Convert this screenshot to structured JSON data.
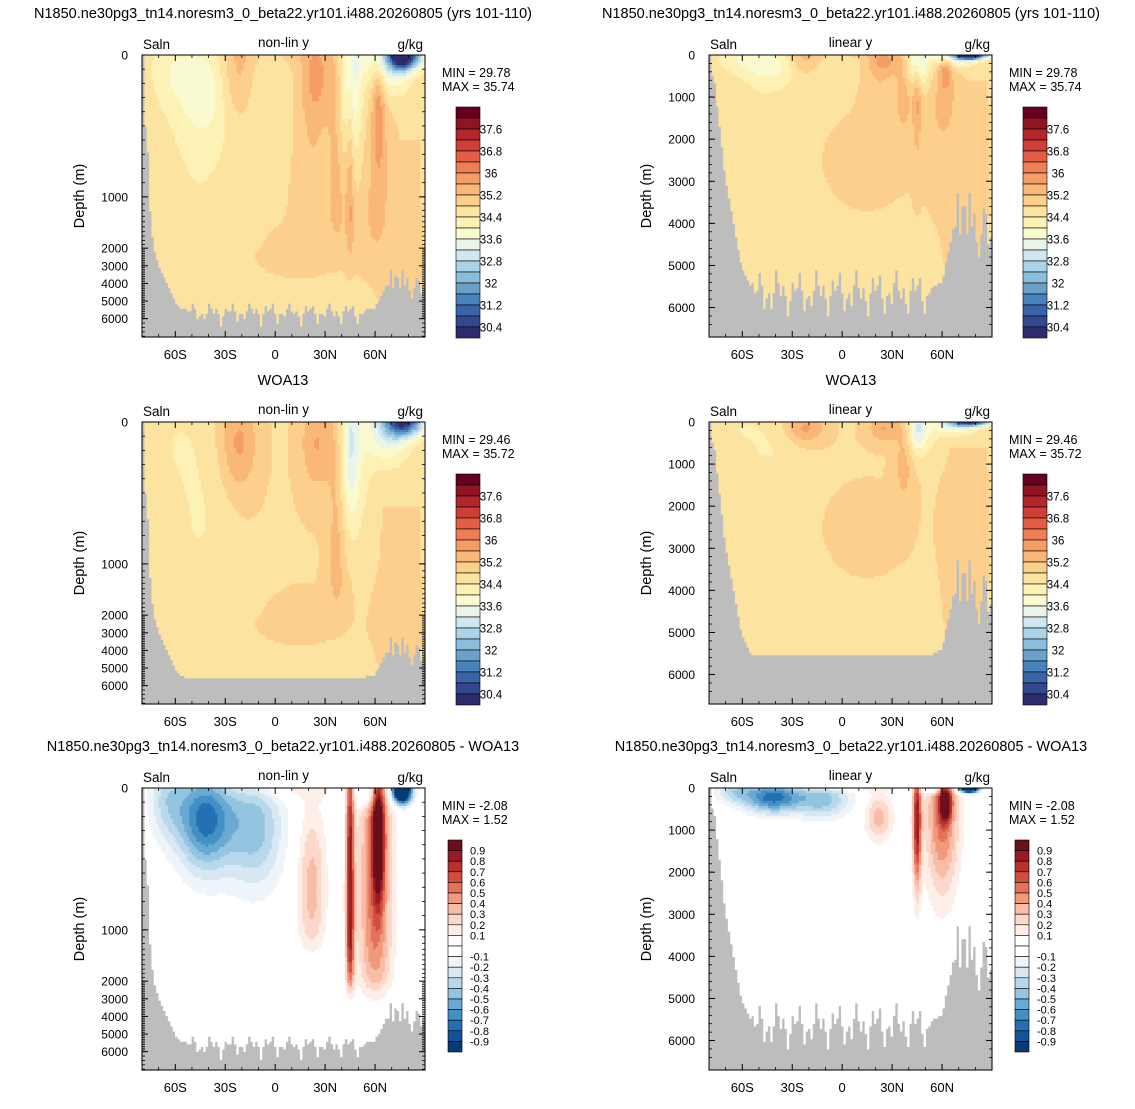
{
  "colors": {
    "land": "#bdbdbd",
    "salinity_palette": [
      "#2c2d6b",
      "#35488f",
      "#3a64a8",
      "#4a82bd",
      "#6aa1cb",
      "#8bbedb",
      "#add4e6",
      "#cfe7ee",
      "#e9f4ea",
      "#fafad0",
      "#fdf1b6",
      "#fde3a0",
      "#fcd08c",
      "#f9b878",
      "#f59d66",
      "#ee7e55",
      "#e35d46",
      "#d03e38",
      "#b3262e",
      "#8e1426",
      "#67001f"
    ],
    "difference_palette": [
      "#083a73",
      "#14529a",
      "#2570b3",
      "#4390c5",
      "#6aa9d3",
      "#93c4e0",
      "#b8d8eb",
      "#d7e8f3",
      "#eef5fa",
      "#ffffff",
      "#ffffff",
      "#fdeee7",
      "#fbd8ca",
      "#f7bda6",
      "#f1997d",
      "#e4725a",
      "#d14e3f",
      "#b8302e",
      "#961b25",
      "#6c0f1d"
    ]
  },
  "colorbars": {
    "salinity": [
      "37.6",
      "36.8",
      "36",
      "35.2",
      "34.4",
      "33.6",
      "32.8",
      "32",
      "31.2",
      "30.4"
    ],
    "difference": [
      "0.9",
      "0.8",
      "0.7",
      "0.6",
      "0.5",
      "0.4",
      "0.3",
      "0.2",
      "0.1",
      "-0.1",
      "-0.2",
      "-0.3",
      "-0.4",
      "-0.5",
      "-0.6",
      "-0.7",
      "-0.8",
      "-0.9"
    ]
  },
  "chart_data": [
    {
      "type": "heatmap",
      "id": "model-nonlin",
      "title": "N1850.ne30pg3_tn14.noresm3_0_beta22.yr101.i488.20260805 (yrs 101-110)",
      "left_label": "Saln",
      "center_label": "non-lin y",
      "right_label": "g/kg",
      "ylabel": "Depth (m)",
      "stats": {
        "min": "MIN = 29.78",
        "max": "MAX = 35.74"
      },
      "xticks": [
        "60S",
        "30S",
        "0",
        "30N",
        "60N"
      ],
      "yticks": [
        "0",
        "1000",
        "2000",
        "3000",
        "4000",
        "5000",
        "6000"
      ],
      "xlim": [
        -80,
        90
      ],
      "ylim": [
        0,
        6500
      ],
      "yscale": "non-linear",
      "colorbar": "salinity"
    },
    {
      "type": "heatmap",
      "id": "model-linear",
      "title": "N1850.ne30pg3_tn14.noresm3_0_beta22.yr101.i488.20260805 (yrs 101-110)",
      "left_label": "Saln",
      "center_label": "linear y",
      "right_label": "g/kg",
      "ylabel": "Depth (m)",
      "stats": {
        "min": "MIN = 29.78",
        "max": "MAX = 35.74"
      },
      "xticks": [
        "60S",
        "30S",
        "0",
        "30N",
        "60N"
      ],
      "yticks": [
        "0",
        "1000",
        "2000",
        "3000",
        "4000",
        "5000",
        "6000"
      ],
      "xlim": [
        -80,
        90
      ],
      "ylim": [
        0,
        6500
      ],
      "yscale": "linear",
      "colorbar": "salinity"
    },
    {
      "type": "heatmap",
      "id": "obs-nonlin",
      "title": "WOA13",
      "left_label": "Saln",
      "center_label": "non-lin y",
      "right_label": "g/kg",
      "ylabel": "Depth (m)",
      "stats": {
        "min": "MIN = 29.46",
        "max": "MAX = 35.72"
      },
      "xticks": [
        "60S",
        "30S",
        "0",
        "30N",
        "60N"
      ],
      "yticks": [
        "0",
        "1000",
        "2000",
        "3000",
        "4000",
        "5000",
        "6000"
      ],
      "xlim": [
        -80,
        90
      ],
      "ylim": [
        0,
        6500
      ],
      "yscale": "non-linear",
      "colorbar": "salinity"
    },
    {
      "type": "heatmap",
      "id": "obs-linear",
      "title": "WOA13",
      "left_label": "Saln",
      "center_label": "linear y",
      "right_label": "g/kg",
      "ylabel": "Depth (m)",
      "stats": {
        "min": "MIN = 29.46",
        "max": "MAX = 35.72"
      },
      "xticks": [
        "60S",
        "30S",
        "0",
        "30N",
        "60N"
      ],
      "yticks": [
        "0",
        "1000",
        "2000",
        "3000",
        "4000",
        "5000",
        "6000"
      ],
      "xlim": [
        -80,
        90
      ],
      "ylim": [
        0,
        6500
      ],
      "yscale": "linear",
      "colorbar": "salinity"
    },
    {
      "type": "heatmap",
      "id": "diff-nonlin",
      "title": "N1850.ne30pg3_tn14.noresm3_0_beta22.yr101.i488.20260805 - WOA13",
      "left_label": "Saln",
      "center_label": "non-lin y",
      "right_label": "g/kg",
      "ylabel": "Depth (m)",
      "stats": {
        "min": "MIN = -2.08",
        "max": "MAX =  1.52"
      },
      "xticks": [
        "60S",
        "30S",
        "0",
        "30N",
        "60N"
      ],
      "yticks": [
        "0",
        "1000",
        "2000",
        "3000",
        "4000",
        "5000",
        "6000"
      ],
      "xlim": [
        -80,
        90
      ],
      "ylim": [
        0,
        6500
      ],
      "yscale": "non-linear",
      "colorbar": "difference"
    },
    {
      "type": "heatmap",
      "id": "diff-linear",
      "title": "N1850.ne30pg3_tn14.noresm3_0_beta22.yr101.i488.20260805 - WOA13",
      "left_label": "Saln",
      "center_label": "linear y",
      "right_label": "g/kg",
      "ylabel": "Depth (m)",
      "stats": {
        "min": "MIN = -2.08",
        "max": "MAX =  1.52"
      },
      "xticks": [
        "60S",
        "30S",
        "0",
        "30N",
        "60N"
      ],
      "yticks": [
        "0",
        "1000",
        "2000",
        "3000",
        "4000",
        "5000",
        "6000"
      ],
      "xlim": [
        -80,
        90
      ],
      "ylim": [
        0,
        6500
      ],
      "yscale": "linear",
      "colorbar": "difference"
    }
  ]
}
